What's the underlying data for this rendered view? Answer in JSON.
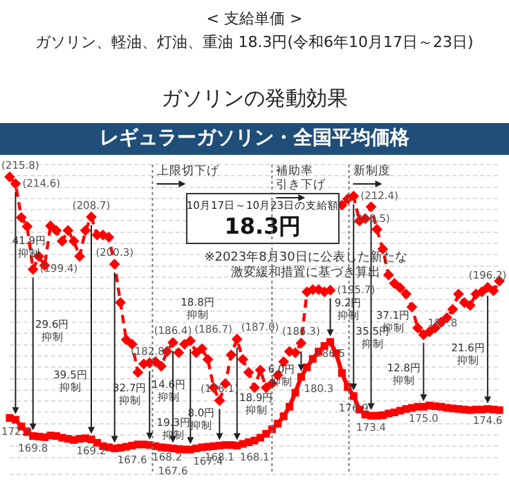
{
  "chart_data": {
    "type": "line",
    "title": "ガソリンの発動効果",
    "subtitle": "レギュラーガソリン・全国平均価格",
    "categories": [
      null,
      null,
      null,
      null,
      null,
      null,
      null,
      null,
      null,
      null,
      null,
      null,
      null,
      null,
      null,
      null,
      null,
      null,
      null,
      null,
      null,
      null,
      null,
      null,
      null,
      null,
      null,
      null,
      null,
      null,
      null,
      null,
      null,
      null,
      null,
      null,
      null,
      null,
      null,
      null,
      null,
      null,
      null,
      null,
      null,
      null,
      null,
      null,
      null,
      null,
      null,
      null,
      null,
      null,
      null,
      null,
      null,
      null,
      null,
      null,
      null,
      null,
      null,
      null,
      null,
      null,
      null,
      null,
      null,
      null,
      null,
      null,
      null,
      null,
      null,
      null,
      null,
      null,
      null,
      null,
      null,
      null,
      null,
      null,
      null
    ],
    "series": [
      {
        "color": "#ff0000",
        "marker": "diamond",
        "line_style": "dashed",
        "values": [
          215.8,
          214.6,
          208.6,
          207.0,
          199.4,
          201.7,
          200.1,
          207.1,
          206.3,
          204.4,
          206.3,
          204.4,
          201.7,
          206.3,
          208.7,
          205.5,
          205.5,
          205.1,
          200.3,
          193.5,
          186.9,
          186.1,
          181.1,
          182.6,
          182.8,
          183.0,
          182.2,
          184.8,
          186.4,
          184.6,
          186.1,
          186.7,
          184.6,
          185.3,
          183.4,
          178.4,
          176.1,
          179.1,
          184.2,
          187.0,
          183.4,
          181.1,
          178.4,
          181.5,
          178.4,
          179.1,
          180.6,
          183.0,
          184.8,
          184.6,
          186.3,
          195.4,
          195.8,
          195.8,
          195.4,
          195.7,
          null,
          210.8,
          211.9,
          212.4,
          208.0,
          208.4,
          210.5,
          206.5,
          203.0,
          198.4,
          196.9,
          196.1,
          195.0,
          192.7,
          189.0,
          187.8,
          188.3,
          189.0,
          190.0,
          190.8,
          192.3,
          195.0,
          193.5,
          193.0,
          195.0,
          195.4,
          196.2,
          195.6,
          197.3
        ],
        "value_labels": [
          "(215.8)",
          "(214.6)",
          null,
          null,
          "(199.4)",
          null,
          null,
          null,
          null,
          null,
          null,
          null,
          null,
          null,
          "(208.7)",
          null,
          null,
          null,
          "(200.3)",
          null,
          null,
          null,
          null,
          null,
          "(182.8)",
          null,
          null,
          null,
          "(186.4)",
          null,
          null,
          "(186.7)",
          null,
          null,
          null,
          null,
          "(176.1)",
          null,
          null,
          "(187.0)",
          null,
          null,
          null,
          null,
          null,
          null,
          null,
          null,
          null,
          null,
          "(186.3)",
          null,
          null,
          null,
          null,
          "(195.7)",
          null,
          null,
          null,
          "(212.4)",
          null,
          null,
          "(210.5)",
          null,
          null,
          null,
          null,
          null,
          null,
          null,
          null,
          "187.8",
          null,
          null,
          null,
          null,
          null,
          null,
          null,
          null,
          null,
          null,
          "(196.2)",
          null,
          null
        ]
      },
      {
        "color": "#ff0000",
        "marker": "square",
        "line_style": "solid",
        "values": [
          173.0,
          172.7,
          171.5,
          170.5,
          169.8,
          169.7,
          169.6,
          169.9,
          169.8,
          169.5,
          169.3,
          169.1,
          169.3,
          169.4,
          169.2,
          168.6,
          168.0,
          167.8,
          167.6,
          167.7,
          167.9,
          168.1,
          168.3,
          168.3,
          168.2,
          168.0,
          167.8,
          167.7,
          167.6,
          167.5,
          167.4,
          167.4,
          167.6,
          167.8,
          167.9,
          168.0,
          168.1,
          168.2,
          168.2,
          168.1,
          168.4,
          168.7,
          169.0,
          169.5,
          170.2,
          171.0,
          172.0,
          173.3,
          175.0,
          177.5,
          180.3,
          182.0,
          183.5,
          184.8,
          185.8,
          186.5,
          184.5,
          181.0,
          178.5,
          176.9,
          174.5,
          173.6,
          173.4,
          173.4,
          173.5,
          173.8,
          174.0,
          174.3,
          174.6,
          174.8,
          175.0,
          175.0,
          175.2,
          175.1,
          175.0,
          174.8,
          174.7,
          174.6,
          174.5,
          174.4,
          174.5,
          174.5,
          174.6,
          174.5,
          174.4
        ],
        "value_labels": [
          null,
          "172.7",
          null,
          null,
          "169.8",
          null,
          null,
          null,
          null,
          null,
          null,
          null,
          null,
          null,
          "169.2",
          null,
          null,
          null,
          "167.6",
          null,
          null,
          null,
          null,
          null,
          "168.2",
          null,
          null,
          null,
          "167.6",
          null,
          null,
          "167.4",
          null,
          null,
          null,
          null,
          "168.1",
          null,
          null,
          "168.1",
          null,
          null,
          null,
          null,
          null,
          null,
          null,
          null,
          null,
          null,
          "180.3",
          null,
          null,
          null,
          null,
          "186.5",
          null,
          null,
          null,
          "176.9",
          null,
          null,
          "173.4",
          null,
          null,
          null,
          null,
          null,
          null,
          null,
          null,
          "175.0",
          null,
          null,
          null,
          null,
          null,
          null,
          null,
          null,
          null,
          null,
          "174.6",
          null,
          null
        ]
      }
    ],
    "ylim": [
      163,
      218
    ],
    "grid": "y",
    "tick_labels": false,
    "annotations": [
      "< 支給単価 >",
      "ガソリン、軽油、灯油、重油 18.3円(令和6年10月17日～23日)",
      "10月17日～10月23日の支給額",
      "18.3円",
      "※2023年8月30日に公表した新たな",
      "激変緩和措置に基づき算出",
      "上限切下げ",
      "補助率引き下げ",
      "新制度",
      "41.9円抑制",
      "29.6円抑制",
      "39.5円抑制",
      "32.7円抑制",
      "14.6円抑制",
      "18.8円抑制",
      "19.3円抑制",
      "8.0円抑制",
      "18.9円抑制",
      "6.0円抑制",
      "9.2円抑制",
      "35.5円抑制",
      "37.1円抑制",
      "12.8円抑制",
      "21.6円抑制"
    ]
  }
}
